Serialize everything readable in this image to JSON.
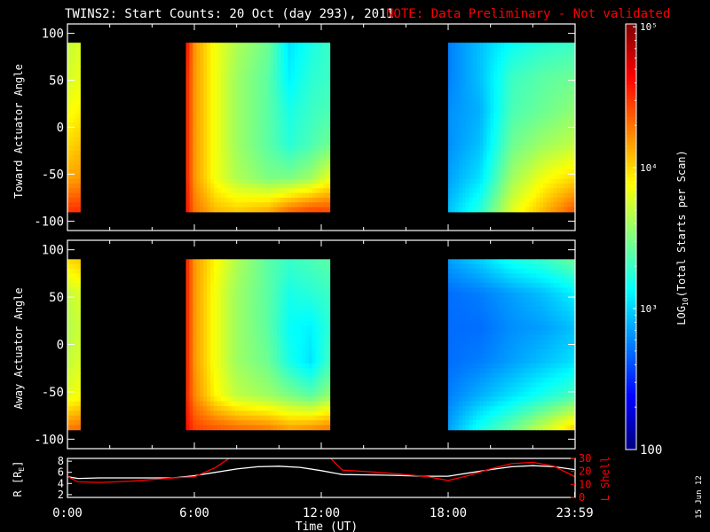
{
  "title": "TWINS2: Start Counts: 20 Oct (day 293), 2011",
  "note": "NOTE: Data Preliminary - Not validated",
  "date_stamp": "15 Jun 12",
  "colors": {
    "background": "#000000",
    "note": "#ff0000",
    "r_line": "#ffffff",
    "lshell_line": "#ff0000"
  },
  "chart_data": [
    {
      "type": "heatmap",
      "ylabel": "Toward Actuator Angle",
      "xlim": [
        0,
        24
      ],
      "ylim": [
        -110,
        110
      ],
      "yticks": [
        100,
        50,
        0,
        -50,
        -100
      ],
      "scale": "log",
      "data_intervals": [
        [
          0.0,
          0.6
        ],
        [
          5.6,
          12.4
        ],
        [
          18.0,
          23.983
        ]
      ],
      "angle_range": [
        -90,
        90
      ],
      "columns": [
        {
          "x": 0.0,
          "vals": [
            3.7,
            3.75,
            3.85,
            4.0,
            4.15,
            4.5
          ]
        },
        {
          "x": 5.7,
          "vals": [
            4.55,
            4.5,
            4.5,
            4.5,
            4.5,
            4.55
          ]
        },
        {
          "x": 6.0,
          "vals": [
            4.2,
            4.2,
            4.2,
            4.2,
            4.2,
            4.3
          ]
        },
        {
          "x": 7.0,
          "vals": [
            3.85,
            3.85,
            3.85,
            3.85,
            3.85,
            4.1
          ]
        },
        {
          "x": 8.0,
          "vals": [
            3.65,
            3.6,
            3.6,
            3.6,
            3.65,
            4.05
          ]
        },
        {
          "x": 9.5,
          "vals": [
            3.45,
            3.4,
            3.4,
            3.4,
            3.5,
            4.15
          ]
        },
        {
          "x": 10.5,
          "vals": [
            3.05,
            3.1,
            3.2,
            3.25,
            3.5,
            4.35
          ]
        },
        {
          "x": 11.5,
          "vals": [
            3.2,
            3.25,
            3.3,
            3.35,
            3.6,
            4.45
          ]
        },
        {
          "x": 12.3,
          "vals": [
            3.3,
            3.3,
            3.35,
            3.45,
            3.8,
            4.45
          ]
        },
        {
          "x": 18.0,
          "vals": [
            2.75,
            2.75,
            2.8,
            2.8,
            2.85,
            2.95
          ]
        },
        {
          "x": 19.5,
          "vals": [
            2.95,
            2.95,
            2.9,
            2.95,
            3.05,
            3.25
          ]
        },
        {
          "x": 21.0,
          "vals": [
            3.15,
            3.3,
            3.35,
            3.45,
            3.6,
            3.8
          ]
        },
        {
          "x": 22.5,
          "vals": [
            3.25,
            3.4,
            3.45,
            3.6,
            3.85,
            4.1
          ]
        },
        {
          "x": 23.98,
          "vals": [
            3.3,
            3.45,
            3.55,
            3.7,
            4.0,
            4.4
          ]
        }
      ]
    },
    {
      "type": "heatmap",
      "ylabel": "Away Actuator Angle",
      "xlim": [
        0,
        24
      ],
      "ylim": [
        -110,
        110
      ],
      "yticks": [
        100,
        50,
        0,
        -50,
        -100
      ],
      "scale": "log",
      "data_intervals": [
        [
          0.0,
          0.6
        ],
        [
          5.6,
          12.4
        ],
        [
          18.0,
          23.983
        ]
      ],
      "angle_range": [
        -90,
        90
      ],
      "columns": [
        {
          "x": 0.0,
          "vals": [
            4.0,
            3.7,
            3.65,
            3.7,
            3.8,
            4.3
          ]
        },
        {
          "x": 5.7,
          "vals": [
            4.5,
            4.5,
            4.5,
            4.5,
            4.5,
            4.6
          ]
        },
        {
          "x": 6.0,
          "vals": [
            4.2,
            4.2,
            4.2,
            4.2,
            4.25,
            4.45
          ]
        },
        {
          "x": 7.0,
          "vals": [
            3.9,
            3.85,
            3.85,
            3.85,
            3.9,
            4.4
          ]
        },
        {
          "x": 8.0,
          "vals": [
            3.65,
            3.6,
            3.6,
            3.6,
            3.7,
            4.35
          ]
        },
        {
          "x": 9.5,
          "vals": [
            3.4,
            3.4,
            3.4,
            3.45,
            3.6,
            4.3
          ]
        },
        {
          "x": 10.5,
          "vals": [
            3.3,
            3.2,
            3.15,
            3.2,
            3.5,
            4.2
          ]
        },
        {
          "x": 11.5,
          "vals": [
            3.35,
            3.25,
            3.1,
            3.05,
            3.4,
            4.25
          ]
        },
        {
          "x": 12.3,
          "vals": [
            3.4,
            3.3,
            3.25,
            3.3,
            3.55,
            4.3
          ]
        },
        {
          "x": 18.0,
          "vals": [
            2.85,
            2.7,
            2.7,
            2.7,
            2.75,
            2.85
          ]
        },
        {
          "x": 19.5,
          "vals": [
            3.0,
            2.75,
            2.7,
            2.75,
            2.9,
            3.2
          ]
        },
        {
          "x": 21.0,
          "vals": [
            3.2,
            2.85,
            2.8,
            2.85,
            3.05,
            3.45
          ]
        },
        {
          "x": 22.5,
          "vals": [
            3.3,
            2.95,
            2.85,
            2.95,
            3.2,
            3.75
          ]
        },
        {
          "x": 23.98,
          "vals": [
            3.45,
            3.1,
            2.95,
            3.05,
            3.35,
            4.05
          ]
        }
      ]
    },
    {
      "type": "line",
      "xlabel": "Time (UT)",
      "ylabel": "R [R_E]",
      "y2label": "L Shell",
      "xlim": [
        0,
        24
      ],
      "ylim": [
        1.5,
        8.5
      ],
      "y2lim": [
        0,
        30
      ],
      "xticks": [
        "0:00",
        "6:00",
        "12:00",
        "18:00",
        "23:59"
      ],
      "yticks": [
        2,
        4,
        6,
        8
      ],
      "y2ticks": [
        0,
        10,
        20,
        30
      ],
      "series": [
        {
          "axis": "left",
          "x": [
            0,
            0.5,
            1.5,
            3,
            5,
            6,
            7,
            8,
            9,
            10,
            11,
            12,
            13,
            15,
            17,
            18,
            19,
            20,
            21,
            22,
            23,
            23.98
          ],
          "y": [
            5.2,
            4.9,
            5.0,
            5.0,
            5.0,
            5.4,
            6.0,
            6.6,
            7.0,
            7.1,
            6.9,
            6.3,
            5.6,
            5.5,
            5.3,
            5.3,
            5.9,
            6.5,
            7.0,
            7.2,
            7.0,
            6.5
          ]
        },
        {
          "axis": "right",
          "x": [
            0,
            0.5,
            1.5,
            3,
            5,
            6,
            7,
            8
          ],
          "y": [
            16,
            12,
            11.5,
            12.5,
            15,
            15.8,
            23,
            34
          ]
        },
        {
          "axis": "right",
          "x": [
            12.2,
            13,
            15,
            17,
            18,
            19,
            20,
            21,
            22,
            23,
            23.98
          ],
          "y": [
            34,
            21,
            19,
            16,
            13,
            17,
            22,
            26,
            27,
            24,
            16
          ]
        }
      ]
    }
  ],
  "colorbar": {
    "label": "LOG10(Total Starts per Scan)",
    "ticks": [
      {
        "v": 2,
        "t": "100"
      },
      {
        "v": 3,
        "t": "10³"
      },
      {
        "v": 4,
        "t": "10⁴"
      },
      {
        "v": 5,
        "t": "10⁵"
      }
    ],
    "range": [
      2,
      5.02
    ]
  }
}
